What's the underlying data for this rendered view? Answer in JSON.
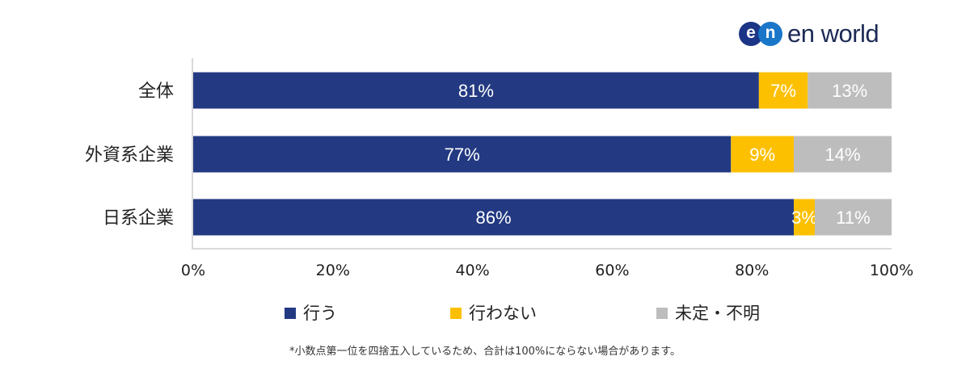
{
  "logo": {
    "mark_e": "e",
    "mark_n": "n",
    "text": "en world"
  },
  "chart_data": {
    "type": "bar",
    "orientation": "horizontal",
    "stacked": true,
    "categories": [
      "全体",
      "外資系企業",
      "日系企業"
    ],
    "series": [
      {
        "name": "行う",
        "color": "#233a82",
        "values": [
          81,
          77,
          86
        ],
        "labels": [
          "81%",
          "77%",
          "86%"
        ],
        "label_color": "#ffffff"
      },
      {
        "name": "行わない",
        "color": "#fdc001",
        "values": [
          7,
          9,
          3
        ],
        "labels": [
          "7%",
          "9%",
          "3%"
        ],
        "label_color": "#ffffff"
      },
      {
        "name": "未定・不明",
        "color": "#bdbdbd",
        "values": [
          13,
          14,
          11
        ],
        "labels": [
          "13%",
          "14%",
          "11%"
        ],
        "label_color": "#ffffff"
      }
    ],
    "xlim": [
      0,
      100
    ],
    "xticks": [
      0,
      20,
      40,
      60,
      80,
      100
    ],
    "xtick_labels": [
      "0%",
      "20%",
      "40%",
      "60%",
      "80%",
      "100%"
    ],
    "grid": false,
    "legend_position": "bottom"
  },
  "footnote": "*小数点第一位を四捨五入しているため、合計は100%にならない場合があります。"
}
